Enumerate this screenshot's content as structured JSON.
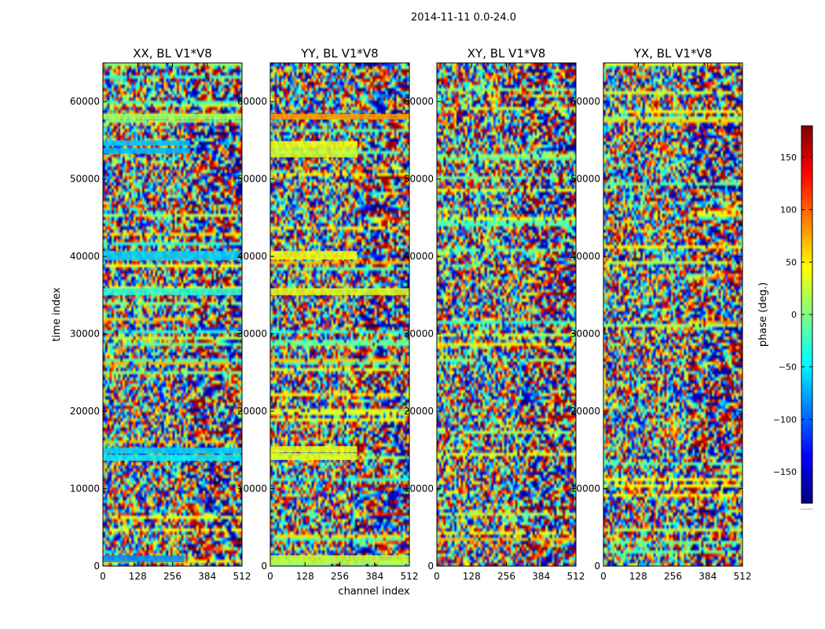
{
  "figure": {
    "title": "2014-11-11 0.0-24.0"
  },
  "chart_data": [
    {
      "type": "heatmap",
      "title": "XX, BL V1*V8",
      "xlabel": "channel index",
      "ylabel": "time index",
      "xlim": [
        0,
        512
      ],
      "ylim": [
        0,
        65000
      ],
      "xticks": [
        0,
        128,
        256,
        384,
        512
      ],
      "yticks": [
        0,
        10000,
        20000,
        30000,
        40000,
        50000,
        60000
      ],
      "bands": [
        {
          "y": [
            500,
            1400
          ],
          "x": [
            0,
            300
          ],
          "phase": -85
        },
        {
          "y": [
            13600,
            14400
          ],
          "x": [
            0,
            512
          ],
          "phase": -50
        },
        {
          "y": [
            14500,
            15300
          ],
          "x": [
            0,
            512
          ],
          "phase": -60
        },
        {
          "y": [
            35000,
            35900
          ],
          "x": [
            0,
            512
          ],
          "phase": -30
        },
        {
          "y": [
            39500,
            40700
          ],
          "x": [
            0,
            512
          ],
          "phase": -60
        },
        {
          "y": [
            53300,
            54000
          ],
          "x": [
            0,
            320
          ],
          "phase": -70
        },
        {
          "y": [
            54300,
            55000
          ],
          "x": [
            0,
            320
          ],
          "phase": -65
        },
        {
          "y": [
            57700,
            58400
          ],
          "x": [
            0,
            512
          ],
          "phase": 10
        }
      ]
    },
    {
      "type": "heatmap",
      "title": "YY, BL V1*V8",
      "xlabel": "channel index",
      "ylabel": "",
      "xlim": [
        0,
        512
      ],
      "ylim": [
        0,
        65000
      ],
      "xticks": [
        0,
        128,
        256,
        384,
        512
      ],
      "yticks": [
        0,
        10000,
        20000,
        30000,
        40000,
        50000,
        60000
      ],
      "bands": [
        {
          "y": [
            300,
            1400
          ],
          "x": [
            0,
            512
          ],
          "phase": 25
        },
        {
          "y": [
            13700,
            14600
          ],
          "x": [
            0,
            320
          ],
          "phase": 35
        },
        {
          "y": [
            14700,
            15500
          ],
          "x": [
            0,
            320
          ],
          "phase": 40
        },
        {
          "y": [
            35000,
            35900
          ],
          "x": [
            0,
            512
          ],
          "phase": 35
        },
        {
          "y": [
            39600,
            40700
          ],
          "x": [
            0,
            320
          ],
          "phase": 40
        },
        {
          "y": [
            52800,
            54000
          ],
          "x": [
            0,
            320
          ],
          "phase": 30
        },
        {
          "y": [
            54000,
            54900
          ],
          "x": [
            0,
            320
          ],
          "phase": 40
        },
        {
          "y": [
            57700,
            58400
          ],
          "x": [
            0,
            512
          ],
          "phase": 80
        }
      ]
    },
    {
      "type": "heatmap",
      "title": "XY, BL V1*V8",
      "xlabel": "channel index",
      "ylabel": "",
      "xlim": [
        0,
        512
      ],
      "ylim": [
        0,
        65000
      ],
      "xticks": [
        0,
        128,
        256,
        384,
        512
      ],
      "yticks": [
        0,
        10000,
        20000,
        30000,
        40000,
        50000,
        60000
      ],
      "bands": []
    },
    {
      "type": "heatmap",
      "title": "YX, BL V1*V8",
      "xlabel": "channel index",
      "ylabel": "",
      "xlim": [
        0,
        512
      ],
      "ylim": [
        0,
        65000
      ],
      "xticks": [
        0,
        128,
        256,
        384,
        512
      ],
      "yticks": [
        0,
        10000,
        20000,
        30000,
        40000,
        50000,
        60000
      ],
      "bands": []
    }
  ],
  "colorbar": {
    "label": "phase (deg.)",
    "range": [
      -180,
      180
    ],
    "ticks": [
      150,
      100,
      50,
      0,
      -50,
      -100,
      -150
    ],
    "colormap": "jet",
    "bottom_note": "......"
  },
  "colors": {
    "jet_stops": [
      "#00007f",
      "#0000ff",
      "#007fff",
      "#00ffff",
      "#7fff7f",
      "#ffff00",
      "#ff7f00",
      "#ff0000",
      "#7f0000"
    ]
  }
}
